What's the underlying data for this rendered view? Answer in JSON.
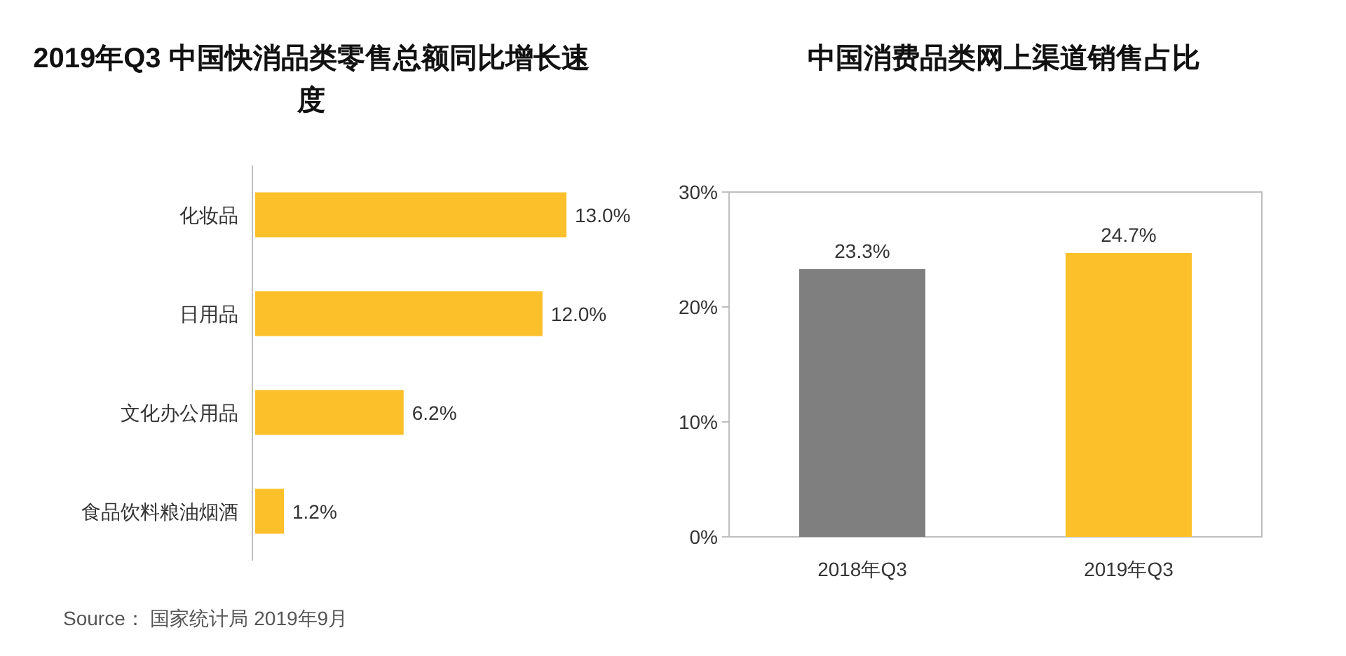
{
  "chart_data": [
    {
      "type": "bar",
      "orientation": "horizontal",
      "title": "2019年Q3 中国快消品类零售总额同比增长速度",
      "categories": [
        "化妆品",
        "日用品",
        "文化办公用品",
        "食品饮料粮油烟酒"
      ],
      "series": [
        {
          "color": "#fcc02b",
          "values": [
            13.0,
            12.0,
            6.2,
            1.2
          ],
          "value_labels": [
            "13.0%",
            "12.0%",
            "6.2%",
            "1.2%"
          ]
        }
      ],
      "xlim": [
        0,
        13
      ],
      "tick_labels": "y",
      "annotations": [
        "Source： 国家统计局 2019年9月"
      ]
    },
    {
      "type": "bar",
      "title": "中国消费品类网上渠道销售占比",
      "categories": [
        "2018年Q3",
        "2019年Q3"
      ],
      "series": [
        {
          "colors": [
            "#7f7f7f",
            "#fcc02b"
          ],
          "values": [
            23.3,
            24.7
          ],
          "value_labels": [
            "23.3%",
            "24.7%"
          ]
        }
      ],
      "ylim": [
        0,
        30
      ],
      "yticks": [
        {
          "value": 0,
          "label": "0%"
        },
        {
          "value": 10,
          "label": "10%"
        },
        {
          "value": 20,
          "label": "20%"
        },
        {
          "value": 30,
          "label": "30%"
        }
      ]
    }
  ]
}
